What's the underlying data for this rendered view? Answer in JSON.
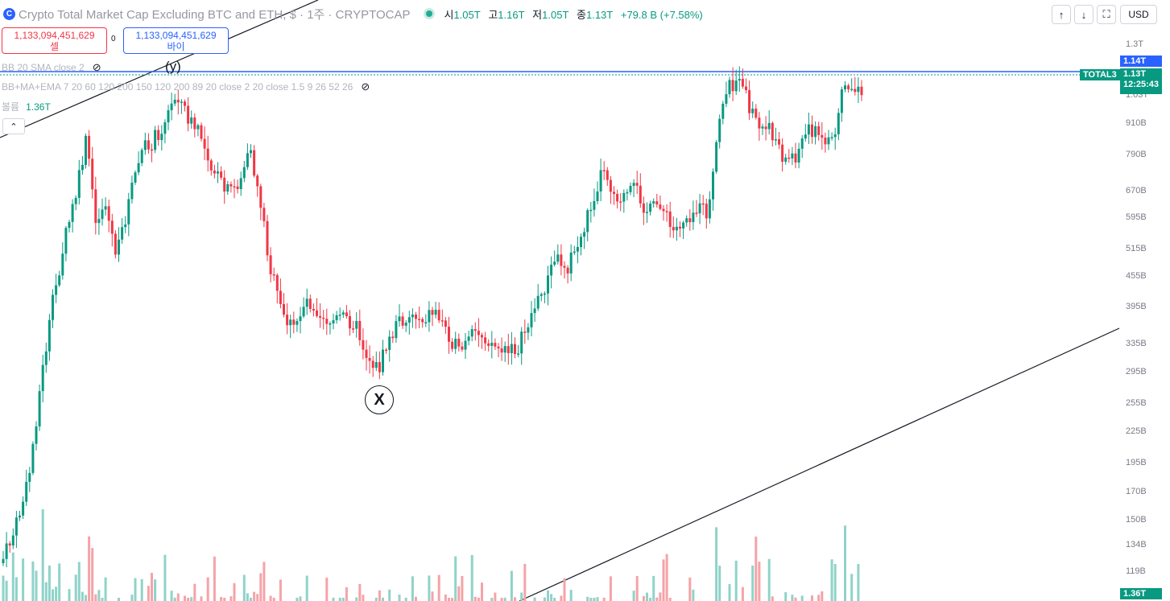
{
  "header": {
    "symbol_title": "Crypto Total Market Cap Excluding BTC and ETH, $ · 1주 · CRYPTOCAP",
    "open_label": "시",
    "open_value": "1.05T",
    "high_label": "고",
    "high_value": "1.16T",
    "low_label": "저",
    "low_value": "1.05T",
    "close_label": "종",
    "close_value": "1.13T",
    "change": "+79.8 B (+7.58%)",
    "currency": "USD",
    "icons": [
      "arrow-up-icon",
      "arrow-down-icon",
      "fullscreen-icon"
    ]
  },
  "trade": {
    "sell_price": "1,133,094,451,629",
    "sell_label": "셀",
    "spread": "0",
    "buy_price": "1,133,094,451,629",
    "buy_label": "바이"
  },
  "indicators": [
    {
      "label": "BB 20 SMA close 2"
    },
    {
      "label": "BB+MA+EMA 7 20 60 120 200 150 120 200 89 20 close 2 20 close 1.5 9 26 52 26"
    }
  ],
  "volume": {
    "label": "볼륨",
    "value": "1.36T"
  },
  "price_axis": [
    "1.3T",
    "1.14T",
    "1.13T",
    "12:25:43",
    "1.03T",
    "910B",
    "790B",
    "670B",
    "595B",
    "515B",
    "455B",
    "395B",
    "335B",
    "295B",
    "255B",
    "225B",
    "195B",
    "170B",
    "150B",
    "134B",
    "119B",
    "1.36T"
  ],
  "tags": {
    "high": "1.14T",
    "last_price": "1.13T",
    "countdown": "12:25:43",
    "symbol": "TOTAL3",
    "volume": "1.36T"
  },
  "annotations": {
    "wave_y": "(y)",
    "wave_x": "X"
  },
  "colors": {
    "up": "#089981",
    "down": "#f23645",
    "vol_up": "#8fd3c9",
    "vol_down": "#f5a3a8",
    "accent": "#2962ff"
  }
}
